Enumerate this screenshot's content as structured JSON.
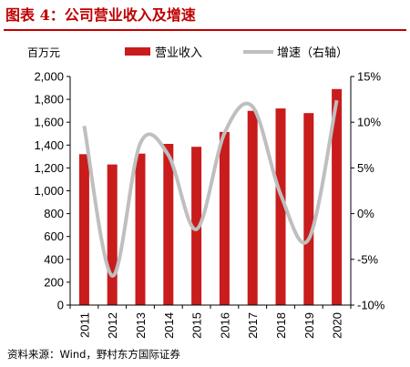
{
  "header": {
    "title": "图表 4：公司营业收入及增速"
  },
  "footer": {
    "source": "资料来源：Wind，野村东方国际证券"
  },
  "colors": {
    "title": "#c00000",
    "bar": "#c91c1c",
    "line": "#bfbfbf"
  },
  "chart_data": {
    "type": "bar",
    "title": "",
    "y_unit_label": "百万元",
    "categories": [
      "2011",
      "2012",
      "2013",
      "2014",
      "2015",
      "2016",
      "2017",
      "2018",
      "2019",
      "2020"
    ],
    "series": [
      {
        "name": "营业收入",
        "type": "bar",
        "axis": "left",
        "values": [
          1320,
          1230,
          1325,
          1410,
          1385,
          1515,
          1700,
          1720,
          1680,
          1890
        ]
      },
      {
        "name": "增速（右轴）",
        "type": "line",
        "axis": "right",
        "smooth": true,
        "values": [
          9.6,
          -6.8,
          7.7,
          6.4,
          -1.7,
          8.8,
          11.7,
          2.1,
          -2.8,
          12.4
        ]
      }
    ],
    "ylim_left": [
      0,
      2000
    ],
    "left_ticks": [
      "0",
      "200",
      "400",
      "600",
      "800",
      "1,000",
      "1,200",
      "1,400",
      "1,600",
      "1,800",
      "2,000"
    ],
    "ylim_right": [
      -10,
      15
    ],
    "right_ticks": [
      "-10%",
      "-5%",
      "0%",
      "5%",
      "10%",
      "15%"
    ],
    "grid": false,
    "legend_position": "top"
  }
}
